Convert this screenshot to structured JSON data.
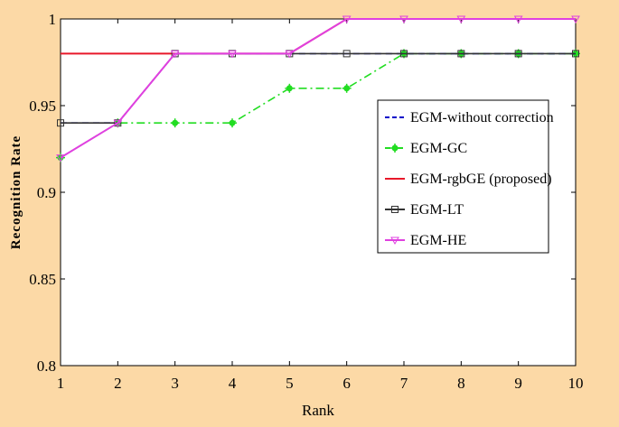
{
  "chart_data": {
    "type": "line",
    "title": "",
    "xlabel": "Rank",
    "ylabel": "Recognition Rate",
    "x": [
      1,
      2,
      3,
      4,
      5,
      6,
      7,
      8,
      9,
      10
    ],
    "xlim": [
      1,
      10
    ],
    "ylim": [
      0.8,
      1
    ],
    "xticks": [
      "1",
      "2",
      "3",
      "4",
      "5",
      "6",
      "7",
      "8",
      "9",
      "10"
    ],
    "yticks": [
      "0.8",
      "0.85",
      "0.9",
      "0.95",
      "1"
    ],
    "ytick_values": [
      0.8,
      0.85,
      0.9,
      0.95,
      1.0
    ],
    "grid": false,
    "legend_position": "right",
    "series": [
      {
        "name": "EGM-without correction",
        "color": "#0000c8",
        "dash": "dashed",
        "marker": "none",
        "values": [
          0.94,
          0.94,
          0.98,
          0.98,
          0.98,
          0.98,
          0.98,
          0.98,
          0.98,
          0.98
        ]
      },
      {
        "name": "EGM-GC",
        "color": "#22dd22",
        "dash": "dashdot",
        "marker": "star",
        "values": [
          0.92,
          0.94,
          0.94,
          0.94,
          0.96,
          0.96,
          0.98,
          0.98,
          0.98,
          0.98
        ]
      },
      {
        "name": "EGM-rgbGE (proposed)",
        "color": "#e8182a",
        "dash": "solid",
        "marker": "none",
        "values": [
          0.98,
          0.98,
          0.98,
          0.98,
          0.98,
          1.0,
          1.0,
          1.0,
          1.0,
          1.0
        ]
      },
      {
        "name": "EGM-LT",
        "color": "#333333",
        "dash": "solid",
        "marker": "square",
        "values": [
          0.94,
          0.94,
          0.98,
          0.98,
          0.98,
          0.98,
          0.98,
          0.98,
          0.98,
          0.98
        ]
      },
      {
        "name": "EGM-HE",
        "color": "#e040e0",
        "dash": "solid",
        "marker": "triangle-down",
        "values": [
          0.92,
          0.94,
          0.98,
          0.98,
          0.98,
          1.0,
          1.0,
          1.0,
          1.0,
          1.0
        ]
      }
    ]
  }
}
